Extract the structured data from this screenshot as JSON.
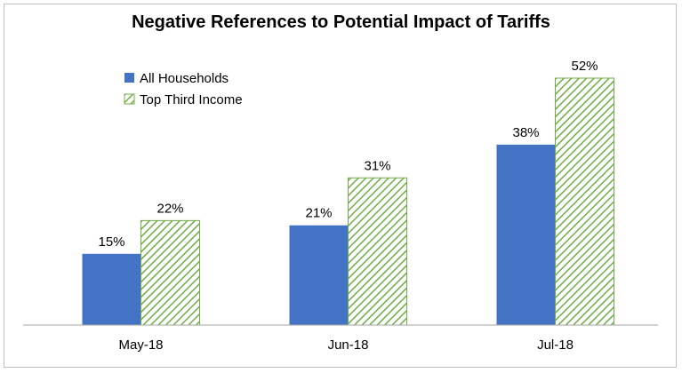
{
  "chart_data": {
    "type": "bar",
    "title": "Negative References to Potential Impact of Tariffs",
    "categories": [
      "May-18",
      "Jun-18",
      "Jul-18"
    ],
    "series": [
      {
        "name": "All Households",
        "values": [
          15,
          21,
          38
        ],
        "labels": [
          "15%",
          "21%",
          "38%"
        ],
        "color": "#4472c4",
        "pattern": "solid"
      },
      {
        "name": "Top Third Income",
        "values": [
          22,
          31,
          52
        ],
        "labels": [
          "22%",
          "31%",
          "52%"
        ],
        "color": "#70ad47",
        "pattern": "diagonal-hatch"
      }
    ],
    "xlabel": "",
    "ylabel": "",
    "ylim": [
      0,
      55
    ],
    "grid": false,
    "legend": "top-left"
  }
}
